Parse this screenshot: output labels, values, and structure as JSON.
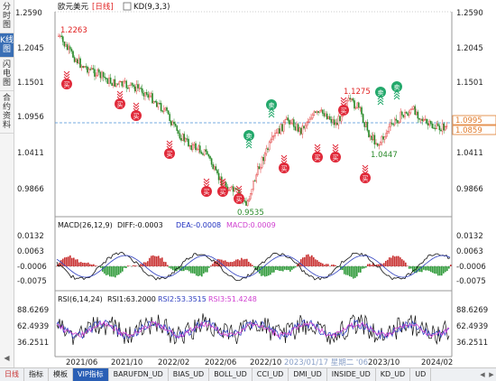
{
  "sidebar": {
    "tabs": [
      {
        "label": "分时图",
        "active": false
      },
      {
        "label": "K线图",
        "active": true
      },
      {
        "label": "闪电图",
        "active": false
      },
      {
        "label": "合约资料",
        "active": false
      }
    ],
    "collapse_icon": "triangle-left-icon"
  },
  "header": {
    "symbol": "欧元美元",
    "period": "[日线]",
    "indicator": "KD(9,3,3)",
    "top_price_left": "1.2590",
    "top_price_right": "1.2590",
    "toolbar_icons": [
      "minus-icon",
      "plus-icon",
      "left-arrow-icon",
      "right-arrow-icon",
      "layout-icon",
      "settings-icon"
    ]
  },
  "price_axis": {
    "left_ticks": [
      "1.2590",
      "1.2045",
      "1.1501",
      "1.0956",
      "1.0411",
      "0.9866"
    ],
    "right_ticks": [
      "1.2590",
      "1.2045",
      "1.1501",
      "1.0411",
      "0.9866"
    ],
    "last_price_1": "1.0995",
    "last_price_2": "1.0859"
  },
  "annotations": {
    "high_label": "1.2263",
    "low_label": "0.9535",
    "local_high_label": "1.1275",
    "local_low_label": "1.0447",
    "buy_label": "买",
    "sell_label": "卖"
  },
  "macd": {
    "title": "MACD(26,12,9)",
    "diff": "DIFF:-0.0003",
    "dea": "DEA:-0.0008",
    "macd": "MACD:0.0009",
    "ticks": [
      "0.0132",
      "0.0063",
      "-0.0006",
      "-0.0075"
    ]
  },
  "rsi": {
    "title": "RSI(6,14,24)",
    "rsi1": "RSI1:63.2000",
    "rsi2": "RSI2:53.3515",
    "rsi3": "RSI3:51.4248",
    "ticks": [
      "88.6269",
      "62.4939",
      "36.2511"
    ]
  },
  "time_axis": {
    "labels": [
      "2021/06",
      "2021/10",
      "2022/02",
      "2022/06",
      "2022/10",
      "2023/06",
      "2023/10",
      "2024/02"
    ],
    "cursor_label": "2023/01/17 星期二 '06"
  },
  "bottom_tabs": [
    "日线",
    "指标",
    "模板",
    "VIP指标",
    "BARUFDN_UD",
    "BIAS_UD",
    "BOLL_UD",
    "CCI_UD",
    "DMI_UD",
    "INSIDE_UD",
    "KD_UD",
    "UD"
  ],
  "colors": {
    "up": "#e03030",
    "down": "#2a8a2a",
    "dashed_line": "#4a90d9",
    "buy_marker": "#e02a3a",
    "sell_marker": "#23a86b",
    "rsi1": "#111111",
    "rsi2": "#3040c0",
    "rsi3": "#d040d0"
  }
}
